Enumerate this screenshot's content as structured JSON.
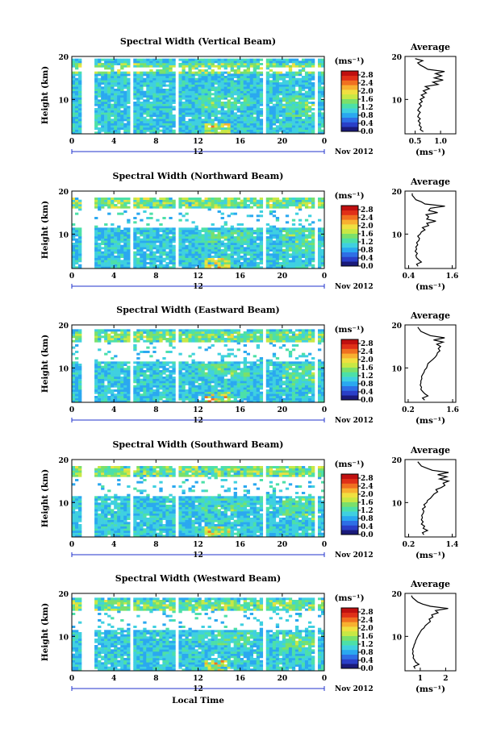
{
  "figure": {
    "time_axis_label": "Local Time",
    "colorbar_unit": "(ms⁻¹)",
    "avg_title": "Average",
    "avg_unit": "(ms⁻¹)",
    "height_label": "Height (km)",
    "date_label": "Nov 2012",
    "day_label": "12",
    "colormap": [
      "#1a1a7a",
      "#2a3fc8",
      "#2e6fe6",
      "#2aa8f0",
      "#3fd0e0",
      "#4ce0a8",
      "#7be06a",
      "#c8e844",
      "#f0e040",
      "#f8b030",
      "#f07020",
      "#e03018",
      "#c01010"
    ],
    "gap_hours": [
      1.0,
      2.15,
      5.45,
      5.75,
      9.75,
      10.0,
      18.1,
      18.35,
      19.0,
      19.2,
      23.0,
      23.3
    ]
  },
  "chart_data": [
    {
      "type": "heatmap",
      "title": "Spectral Width (Vertical Beam)",
      "xlabel": "",
      "ylabel": "Height (km)",
      "x_ticks": [
        "0",
        "4",
        "8",
        "12",
        "16",
        "20",
        "0"
      ],
      "xlim": [
        0,
        24
      ],
      "y_ticks": [
        "10",
        "20"
      ],
      "ylim": [
        2,
        20
      ],
      "colorbar": {
        "ticks": [
          "0.0",
          "0.4",
          "0.8",
          "1.2",
          "1.6",
          "2.0",
          "2.4",
          "2.8"
        ],
        "range": [
          0.0,
          3.0
        ]
      },
      "max_height_km": 19.5,
      "average_profile": {
        "x_ticks": [
          "0.5",
          "1.0"
        ],
        "xlim": [
          0.3,
          1.3
        ],
        "y_ticks": [
          "10",
          "20"
        ],
        "ylim": [
          2,
          20
        ],
        "heights": [
          2.5,
          3,
          3.5,
          4,
          4.5,
          5,
          5.5,
          6,
          6.5,
          7,
          7.5,
          8,
          8.5,
          9,
          9.5,
          10,
          10.5,
          11,
          11.5,
          12,
          12.5,
          13,
          13.5,
          14,
          14.5,
          15,
          15.5,
          16,
          16.5,
          17,
          17.5,
          18,
          18.5,
          19,
          19.5
        ],
        "values": [
          0.66,
          0.6,
          0.62,
          0.58,
          0.6,
          0.56,
          0.6,
          0.55,
          0.57,
          0.6,
          0.55,
          0.58,
          0.62,
          0.58,
          0.64,
          0.6,
          0.68,
          0.62,
          0.72,
          0.66,
          0.78,
          0.7,
          0.95,
          0.85,
          1.05,
          0.88,
          1.02,
          0.9,
          1.08,
          0.75,
          0.68,
          0.6,
          0.55,
          0.65,
          0.5
        ]
      }
    },
    {
      "type": "heatmap",
      "title": "Spectral Width (Northward Beam)",
      "xlabel": "",
      "ylabel": "Height (km)",
      "x_ticks": [
        "0",
        "4",
        "8",
        "12",
        "16",
        "20",
        "0"
      ],
      "xlim": [
        0,
        24
      ],
      "y_ticks": [
        "10",
        "20"
      ],
      "ylim": [
        2,
        20
      ],
      "colorbar": {
        "ticks": [
          "0.0",
          "0.4",
          "0.8",
          "1.2",
          "1.6",
          "2.0",
          "2.4",
          "2.8"
        ],
        "range": [
          0.0,
          3.0
        ]
      },
      "max_height_km": 18.5,
      "average_profile": {
        "x_ticks": [
          "0.4",
          "1.6"
        ],
        "xlim": [
          0.3,
          1.7
        ],
        "y_ticks": [
          "10",
          "20"
        ],
        "ylim": [
          2,
          20
        ],
        "heights": [
          2.5,
          3,
          3.5,
          4,
          4.5,
          5,
          5.5,
          6,
          6.5,
          7,
          7.5,
          8,
          8.5,
          9,
          9.5,
          10,
          10.5,
          11,
          11.5,
          12,
          12.5,
          13,
          13.5,
          14,
          14.5,
          15,
          15.5,
          16,
          16.5,
          17,
          17.5,
          18,
          18.5,
          19,
          19.5
        ],
        "values": [
          0.66,
          0.62,
          0.75,
          0.68,
          0.62,
          0.6,
          0.64,
          0.58,
          0.62,
          0.6,
          0.65,
          0.62,
          0.68,
          0.7,
          0.65,
          0.72,
          0.75,
          0.85,
          0.78,
          0.95,
          0.9,
          1.15,
          0.9,
          0.95,
          0.88,
          1.2,
          0.95,
          1.0,
          1.4,
          0.85,
          0.75,
          0.6,
          0.55,
          0.5,
          0.5
        ]
      }
    },
    {
      "type": "heatmap",
      "title": "Spectral Width (Eastward Beam)",
      "xlabel": "",
      "ylabel": "Height (km)",
      "x_ticks": [
        "0",
        "4",
        "8",
        "12",
        "16",
        "20",
        "0"
      ],
      "xlim": [
        0,
        24
      ],
      "y_ticks": [
        "10",
        "20"
      ],
      "ylim": [
        2,
        20
      ],
      "colorbar": {
        "ticks": [
          "0.0",
          "0.4",
          "0.8",
          "1.2",
          "1.6",
          "2.0",
          "2.4",
          "2.8"
        ],
        "range": [
          0.0,
          3.0
        ]
      },
      "max_height_km": 19.0,
      "average_profile": {
        "x_ticks": [
          "0.2",
          "1.6"
        ],
        "xlim": [
          0.1,
          1.7
        ],
        "y_ticks": [
          "10",
          "20"
        ],
        "ylim": [
          2,
          20
        ],
        "heights": [
          2.5,
          3,
          3.5,
          4,
          4.5,
          5,
          5.5,
          6,
          6.5,
          7,
          7.5,
          8,
          8.5,
          9,
          9.5,
          10,
          10.5,
          11,
          11.5,
          12,
          12.5,
          13,
          13.5,
          14,
          14.5,
          15,
          15.5,
          16,
          16.5,
          17,
          17.5,
          18,
          18.5,
          19,
          19.5
        ],
        "values": [
          0.72,
          0.65,
          0.82,
          0.72,
          0.66,
          0.6,
          0.62,
          0.58,
          0.6,
          0.6,
          0.63,
          0.62,
          0.66,
          0.7,
          0.72,
          0.78,
          0.8,
          0.82,
          0.9,
          0.98,
          1.05,
          1.1,
          1.12,
          1.2,
          1.15,
          1.22,
          1.1,
          1.3,
          1.0,
          1.35,
          0.9,
          0.75,
          0.6,
          0.55,
          0.5
        ]
      }
    },
    {
      "type": "heatmap",
      "title": "Spectral Width (Southward Beam)",
      "xlabel": "",
      "ylabel": "Height (km)",
      "x_ticks": [
        "0",
        "4",
        "8",
        "12",
        "16",
        "20",
        "0"
      ],
      "xlim": [
        0,
        24
      ],
      "y_ticks": [
        "10",
        "20"
      ],
      "ylim": [
        2,
        20
      ],
      "colorbar": {
        "ticks": [
          "0.0",
          "0.4",
          "0.8",
          "1.2",
          "1.6",
          "2.0",
          "2.4",
          "2.8"
        ],
        "range": [
          0.0,
          3.0
        ]
      },
      "max_height_km": 18.5,
      "average_profile": {
        "x_ticks": [
          "0.2",
          "1.4"
        ],
        "xlim": [
          0.1,
          1.5
        ],
        "y_ticks": [
          "10",
          "20"
        ],
        "ylim": [
          2,
          20
        ],
        "heights": [
          2.5,
          3,
          3.5,
          4,
          4.5,
          5,
          5.5,
          6,
          6.5,
          7,
          7.5,
          8,
          8.5,
          9,
          9.5,
          10,
          10.5,
          11,
          11.5,
          12,
          12.5,
          13,
          13.5,
          14,
          14.5,
          15,
          15.5,
          16,
          16.5,
          17,
          17.5,
          18,
          18.5,
          19,
          19.5
        ],
        "values": [
          0.62,
          0.58,
          0.72,
          0.6,
          0.64,
          0.55,
          0.6,
          0.55,
          0.58,
          0.56,
          0.6,
          0.62,
          0.58,
          0.66,
          0.62,
          0.7,
          0.72,
          0.8,
          0.85,
          0.9,
          1.0,
          0.95,
          1.1,
          1.2,
          1.15,
          1.3,
          1.05,
          1.25,
          1.0,
          1.3,
          0.85,
          0.7,
          0.55,
          0.5,
          0.45
        ]
      }
    },
    {
      "type": "heatmap",
      "title": "Spectral Width (Westward Beam)",
      "xlabel": "Local Time",
      "ylabel": "Height (km)",
      "x_ticks": [
        "0",
        "4",
        "8",
        "12",
        "16",
        "20",
        "0"
      ],
      "xlim": [
        0,
        24
      ],
      "y_ticks": [
        "10",
        "20"
      ],
      "ylim": [
        2,
        20
      ],
      "colorbar": {
        "ticks": [
          "0.0",
          "0.4",
          "0.8",
          "1.2",
          "1.6",
          "2.0",
          "2.4",
          "2.8"
        ],
        "range": [
          0.0,
          3.0
        ]
      },
      "max_height_km": 18.8,
      "average_profile": {
        "x_ticks": [
          "1",
          "2"
        ],
        "xlim": [
          0.4,
          2.4
        ],
        "y_ticks": [
          "10",
          "20"
        ],
        "ylim": [
          2,
          20
        ],
        "heights": [
          2.5,
          3,
          3.5,
          4,
          4.5,
          5,
          5.5,
          6,
          6.5,
          7,
          7.5,
          8,
          8.5,
          9,
          9.5,
          10,
          10.5,
          11,
          11.5,
          12,
          12.5,
          13,
          13.5,
          14,
          14.5,
          15,
          15.5,
          16,
          16.5,
          17,
          17.5,
          18,
          18.5,
          19,
          19.5
        ],
        "values": [
          0.8,
          0.75,
          0.95,
          0.82,
          0.78,
          0.72,
          0.74,
          0.7,
          0.72,
          0.7,
          0.74,
          0.76,
          0.8,
          0.82,
          0.86,
          0.9,
          0.95,
          1.0,
          1.05,
          1.15,
          1.2,
          1.3,
          1.4,
          1.35,
          1.5,
          1.45,
          1.7,
          1.6,
          2.1,
          1.4,
          1.1,
          0.9,
          0.8,
          0.7,
          0.65
        ]
      }
    }
  ]
}
